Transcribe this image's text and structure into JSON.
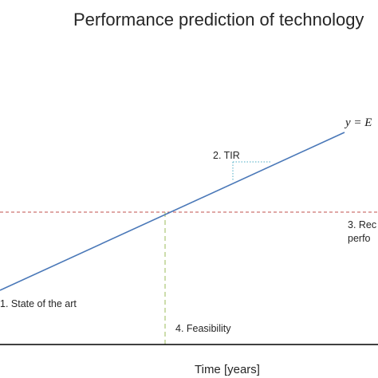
{
  "title": "Performance prediction of technology",
  "equation": "y = E",
  "labels": {
    "tir": "2. TIR",
    "requirement_line1": "3. Rec",
    "requirement_line2": "perfo",
    "state_of_art": "1. State of the art",
    "feasibility": "4. Feasibility"
  },
  "x_axis_label": "Time [years]",
  "colors": {
    "trend_line": "#4a78b8",
    "requirement_line": "#c0504d",
    "feasibility_line": "#9bbb59",
    "tir_marker": "#4bacc6",
    "axis": "#000000"
  }
}
